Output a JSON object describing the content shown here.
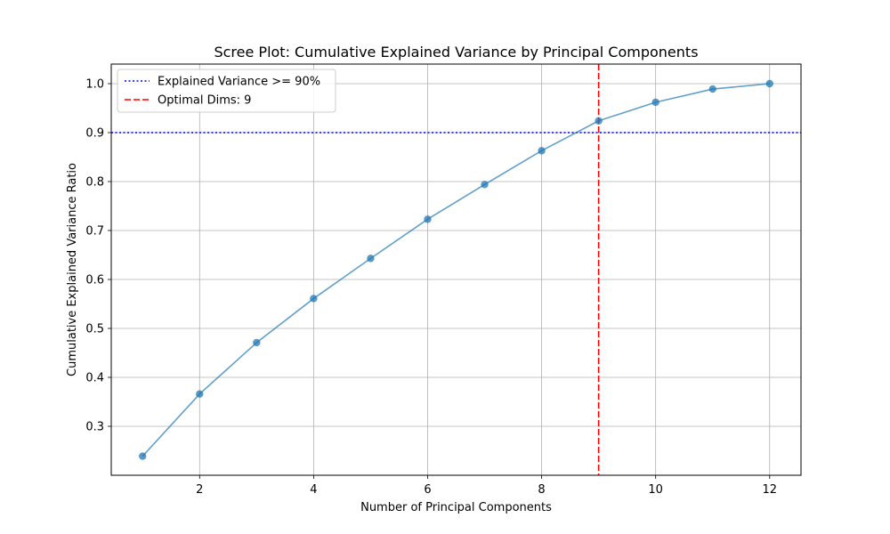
{
  "chart_data": {
    "type": "line",
    "title": "Scree Plot: Cumulative Explained Variance by Principal Components",
    "xlabel": "Number of Principal Components",
    "ylabel": "Cumulative Explained Variance Ratio",
    "xlim": [
      0.45,
      12.55
    ],
    "ylim": [
      0.2,
      1.04
    ],
    "xticks": [
      2,
      4,
      6,
      8,
      10,
      12
    ],
    "yticks": [
      0.3,
      0.4,
      0.5,
      0.6,
      0.7,
      0.8,
      0.9,
      1.0
    ],
    "xtick_labels": [
      "2",
      "4",
      "6",
      "8",
      "10",
      "12"
    ],
    "ytick_labels": [
      "0.3",
      "0.4",
      "0.5",
      "0.6",
      "0.7",
      "0.8",
      "0.9",
      "1.0"
    ],
    "grid": true,
    "legend_position": "top-left",
    "series": [
      {
        "x": [
          1,
          2,
          3,
          4,
          5,
          6,
          7,
          8,
          9,
          10,
          11,
          12
        ],
        "values": [
          0.239,
          0.366,
          0.471,
          0.561,
          0.643,
          0.723,
          0.794,
          0.863,
          0.924,
          0.962,
          0.989,
          1.0
        ],
        "color": "#1f77b4"
      }
    ],
    "reference_lines": [
      {
        "orientation": "horizontal",
        "value": 0.9,
        "style": "dotted",
        "color": "#0000ff",
        "label": "Explained Variance >= 90%"
      },
      {
        "orientation": "vertical",
        "value": 9,
        "style": "dashed",
        "color": "#ff0000",
        "label": "Optimal Dims: 9"
      }
    ]
  }
}
